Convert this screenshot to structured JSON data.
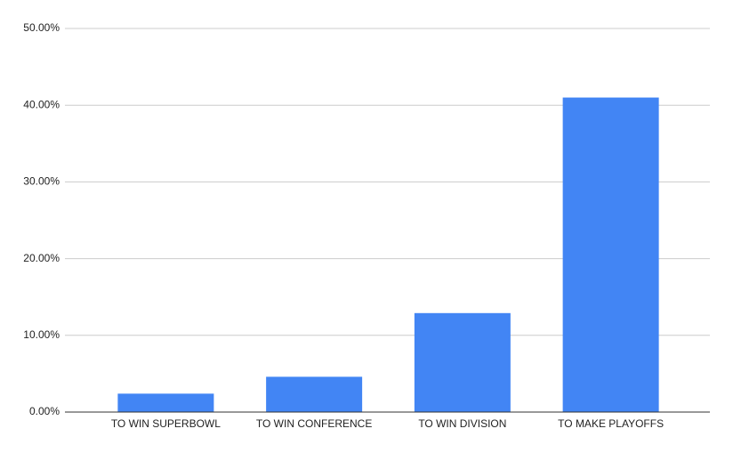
{
  "chart_data": {
    "type": "bar",
    "categories": [
      "TO WIN SUPERBOWL",
      "TO WIN CONFERENCE",
      "TO WIN DIVISION",
      "TO MAKE PLAYOFFS"
    ],
    "values": [
      2.4,
      4.6,
      12.9,
      41.0
    ],
    "color": "#4285f4",
    "ylim": [
      0,
      50
    ],
    "yticks": [
      {
        "value": 0,
        "label": "0.00%"
      },
      {
        "value": 10,
        "label": "10.00%"
      },
      {
        "value": 20,
        "label": "20.00%"
      },
      {
        "value": 30,
        "label": "30.00%"
      },
      {
        "value": 40,
        "label": "40.00%"
      },
      {
        "value": 50,
        "label": "50.00%"
      }
    ],
    "grid": true
  }
}
